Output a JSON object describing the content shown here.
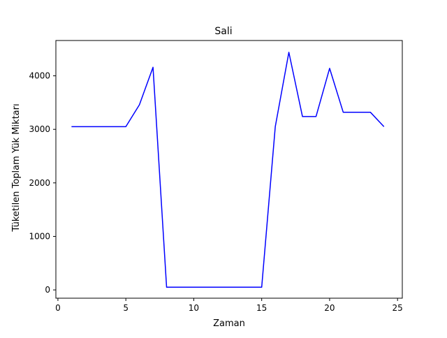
{
  "chart_data": {
    "type": "line",
    "title": "Sali",
    "xlabel": "Zaman",
    "ylabel": "Tüketilen Toplam Yük Miktarı",
    "xlim": [
      0,
      25
    ],
    "ylim": [
      0,
      4500
    ],
    "xticks": [
      0,
      5,
      10,
      15,
      20,
      25
    ],
    "yticks": [
      0,
      1000,
      2000,
      3000,
      4000
    ],
    "grid": false,
    "series": [
      {
        "color": "#0000ff",
        "x": [
          1,
          2,
          3,
          4,
          5,
          6,
          7,
          8,
          9,
          10,
          11,
          12,
          13,
          14,
          15,
          16,
          17,
          18,
          19,
          20,
          21,
          22,
          23,
          24
        ],
        "y": [
          3050,
          3050,
          3050,
          3050,
          3050,
          3460,
          4160,
          50,
          50,
          50,
          50,
          50,
          50,
          50,
          50,
          3050,
          4440,
          3240,
          3240,
          4140,
          3320,
          3320,
          3320,
          3050
        ]
      }
    ]
  }
}
